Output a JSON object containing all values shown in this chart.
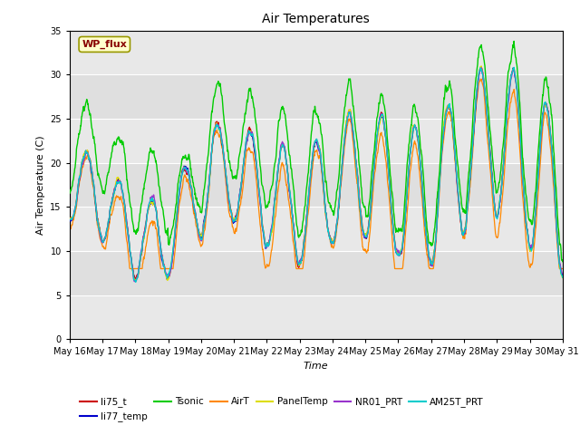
{
  "title": "Air Temperatures",
  "xlabel": "Time",
  "ylabel": "Air Temperature (C)",
  "ylim": [
    0,
    35
  ],
  "yticks": [
    0,
    5,
    10,
    15,
    20,
    25,
    30,
    35
  ],
  "x_tick_labels": [
    "May 16",
    "May 17",
    "May 18",
    "May 19",
    "May 20",
    "May 21",
    "May 22",
    "May 23",
    "May 24",
    "May 25",
    "May 26",
    "May 27",
    "May 28",
    "May 29",
    "May 30",
    "May 31"
  ],
  "series_colors": {
    "li75_t": "#cc0000",
    "li77_temp": "#0000cc",
    "Tsonic": "#00cc00",
    "AirT": "#ff8800",
    "PanelTemp": "#dddd00",
    "NR01_PRT": "#9933cc",
    "AM25T_PRT": "#00cccc"
  },
  "legend_label": "WP_flux",
  "legend_box_facecolor": "#ffffcc",
  "legend_box_edgecolor": "#999900",
  "legend_text_color": "#880000",
  "plot_bg": "#e8e8e8",
  "fig_bg": "#ffffff",
  "grid_color": "#ffffff",
  "n_points": 1440
}
